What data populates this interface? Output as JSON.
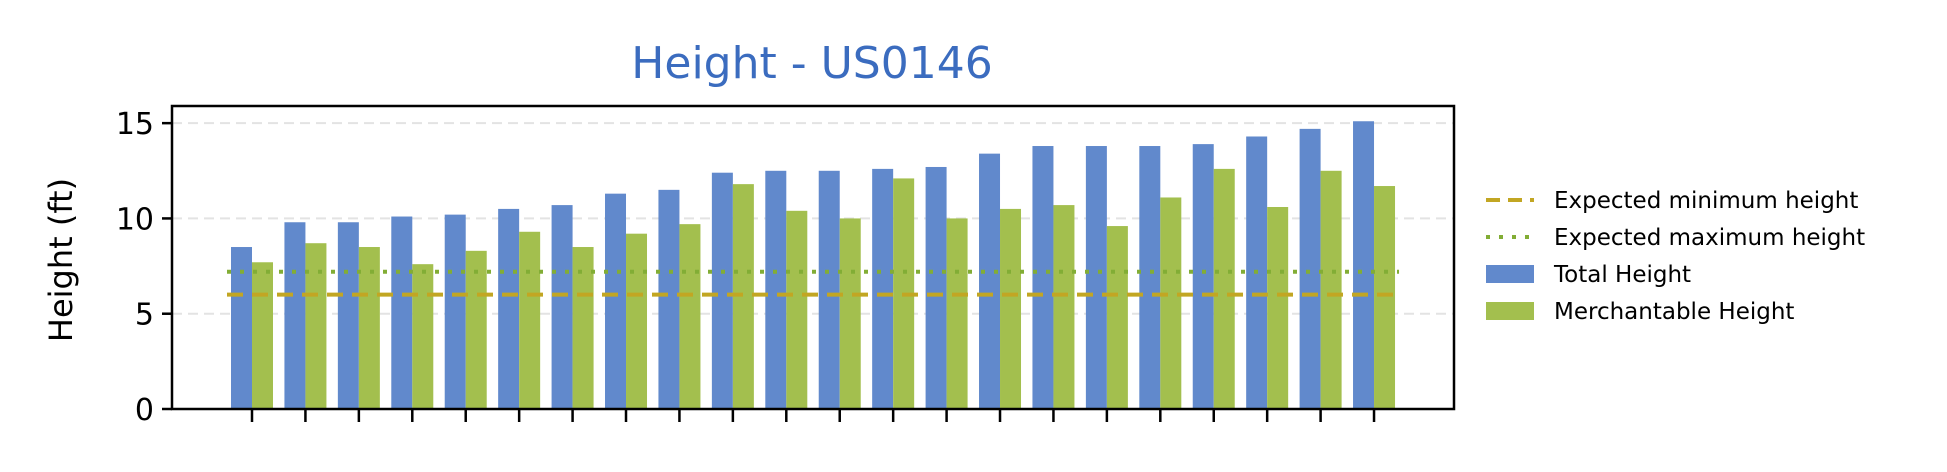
{
  "chart_data": {
    "type": "bar",
    "title": "Height - US0146",
    "xlabel": "",
    "ylabel": "Height (ft)",
    "ylim": [
      0,
      15.9
    ],
    "yticks": [
      0,
      5,
      10,
      15
    ],
    "grid": "horizontal dashed",
    "legend_position": "right-outside",
    "categories": [
      "",
      "",
      "",
      "",
      "",
      "",
      "",
      "",
      "",
      "",
      "",
      "",
      "",
      "",
      "",
      "",
      "",
      "",
      "",
      "",
      "",
      ""
    ],
    "series": [
      {
        "name": "Total Height",
        "color": "#6189cc",
        "values": [
          8.5,
          9.8,
          9.8,
          10.1,
          10.2,
          10.5,
          10.7,
          11.3,
          11.5,
          12.4,
          12.5,
          12.5,
          12.6,
          12.7,
          13.4,
          13.8,
          13.8,
          13.8,
          13.9,
          14.3,
          14.7,
          15.1
        ]
      },
      {
        "name": "Merchantable Height",
        "color": "#a3bf4e",
        "values": [
          7.7,
          8.7,
          8.5,
          7.6,
          8.3,
          9.3,
          8.5,
          9.2,
          9.7,
          11.8,
          10.4,
          10.0,
          12.1,
          10.0,
          10.5,
          10.7,
          9.6,
          11.1,
          12.6,
          10.6,
          12.5,
          11.7
        ]
      }
    ],
    "reference_lines": [
      {
        "name": "Expected minimum height",
        "value": 6.0,
        "color": "#c2a623",
        "style": "dashed"
      },
      {
        "name": "Expected maximum height",
        "value": 7.2,
        "color": "#82ad35",
        "style": "dotted"
      }
    ]
  }
}
